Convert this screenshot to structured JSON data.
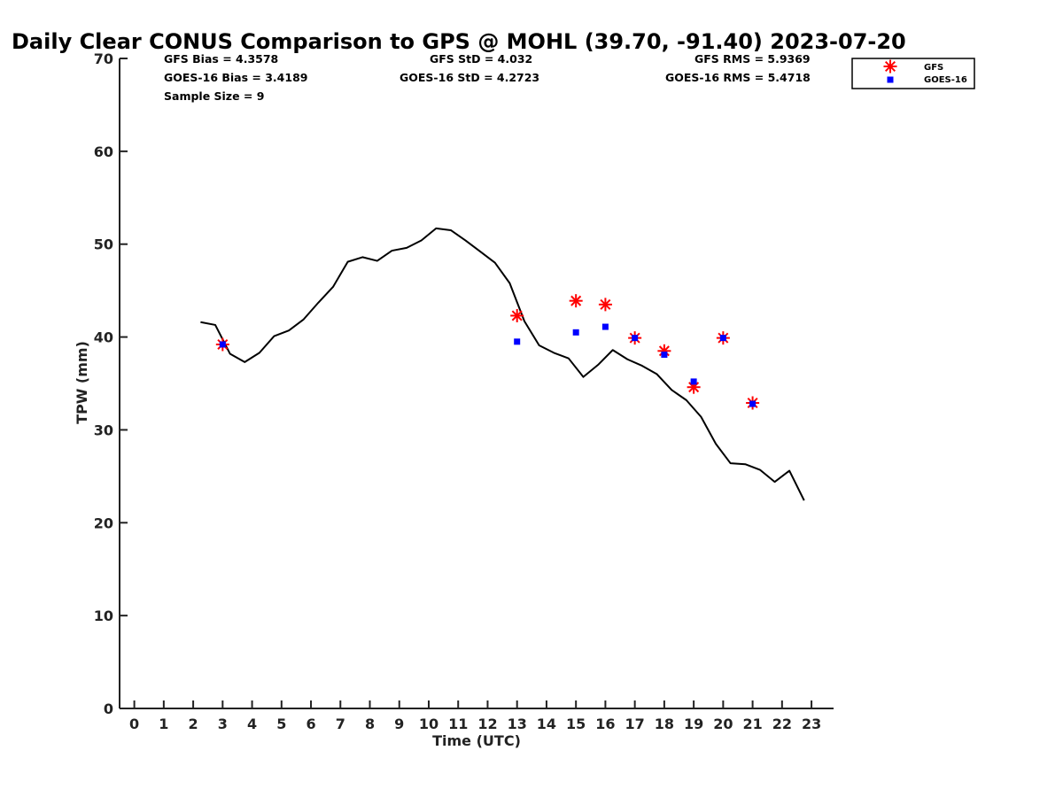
{
  "chart_data": {
    "type": "line",
    "title": "Daily Clear CONUS Comparison to GPS @ MOHL (39.70, -91.40) 2023-07-20",
    "xlabel": "Time (UTC)",
    "ylabel": "TPW (mm)",
    "xlim": [
      -0.5,
      23.75
    ],
    "ylim": [
      0,
      70
    ],
    "xticks": [
      "0",
      "1",
      "2",
      "3",
      "4",
      "5",
      "6",
      "7",
      "8",
      "9",
      "10",
      "11",
      "12",
      "13",
      "14",
      "15",
      "16",
      "17",
      "18",
      "19",
      "20",
      "21",
      "22",
      "23"
    ],
    "yticks": [
      "0",
      "10",
      "20",
      "30",
      "40",
      "50",
      "60",
      "70"
    ],
    "grid": false,
    "legend_position": "top-right",
    "stats": {
      "gfs_bias": "GFS Bias = 4.3578",
      "goes_bias": "GOES-16 Bias = 3.4189",
      "sample_size": "Sample Size = 9",
      "gfs_std": "GFS StD = 4.032",
      "goes_std": "GOES-16 StD = 4.2723",
      "gfs_rms": "GFS RMS = 5.9369",
      "goes_rms": "GOES-16 RMS = 5.4718"
    },
    "series": [
      {
        "kind": "line",
        "color": "#000000",
        "x": [
          2.25,
          2.75,
          3.25,
          3.75,
          4.25,
          4.75,
          5.25,
          5.75,
          6.25,
          6.75,
          7.25,
          7.75,
          8.25,
          8.75,
          9.25,
          9.75,
          10.25,
          10.75,
          11.25,
          11.75,
          12.25,
          12.75,
          13.25,
          13.75,
          14.25,
          14.75,
          15.25,
          15.75,
          16.25,
          16.75,
          17.25,
          17.75,
          18.25,
          18.75,
          19.25,
          19.75,
          20.25,
          20.75,
          21.25,
          21.75,
          22.25,
          22.75
        ],
        "values": [
          41.6,
          41.3,
          38.2,
          37.3,
          38.3,
          40.1,
          40.7,
          41.9,
          43.7,
          45.4,
          48.1,
          48.6,
          48.2,
          49.3,
          49.6,
          50.4,
          51.7,
          51.5,
          50.4,
          49.2,
          48.0,
          45.8,
          41.7,
          39.1,
          38.3,
          37.7,
          35.7,
          37.0,
          38.6,
          37.6,
          36.9,
          36.0,
          34.3,
          33.2,
          31.4,
          28.5,
          26.4,
          26.3,
          25.7,
          24.4,
          25.6,
          22.4
        ]
      },
      {
        "name": "GFS",
        "kind": "scatter",
        "marker": "asterisk",
        "color": "#ff0000",
        "x": [
          3,
          13,
          15,
          16,
          17,
          18,
          19,
          20,
          21
        ],
        "values": [
          39.2,
          42.3,
          43.9,
          43.5,
          39.9,
          38.5,
          34.6,
          39.9,
          32.9
        ]
      },
      {
        "name": "GOES-16",
        "kind": "scatter",
        "marker": "square",
        "color": "#0000ff",
        "x": [
          3,
          13,
          15,
          16,
          17,
          18,
          19,
          20,
          21
        ],
        "values": [
          39.2,
          39.5,
          40.5,
          41.1,
          39.9,
          38.1,
          35.2,
          39.9,
          32.8
        ]
      }
    ]
  }
}
